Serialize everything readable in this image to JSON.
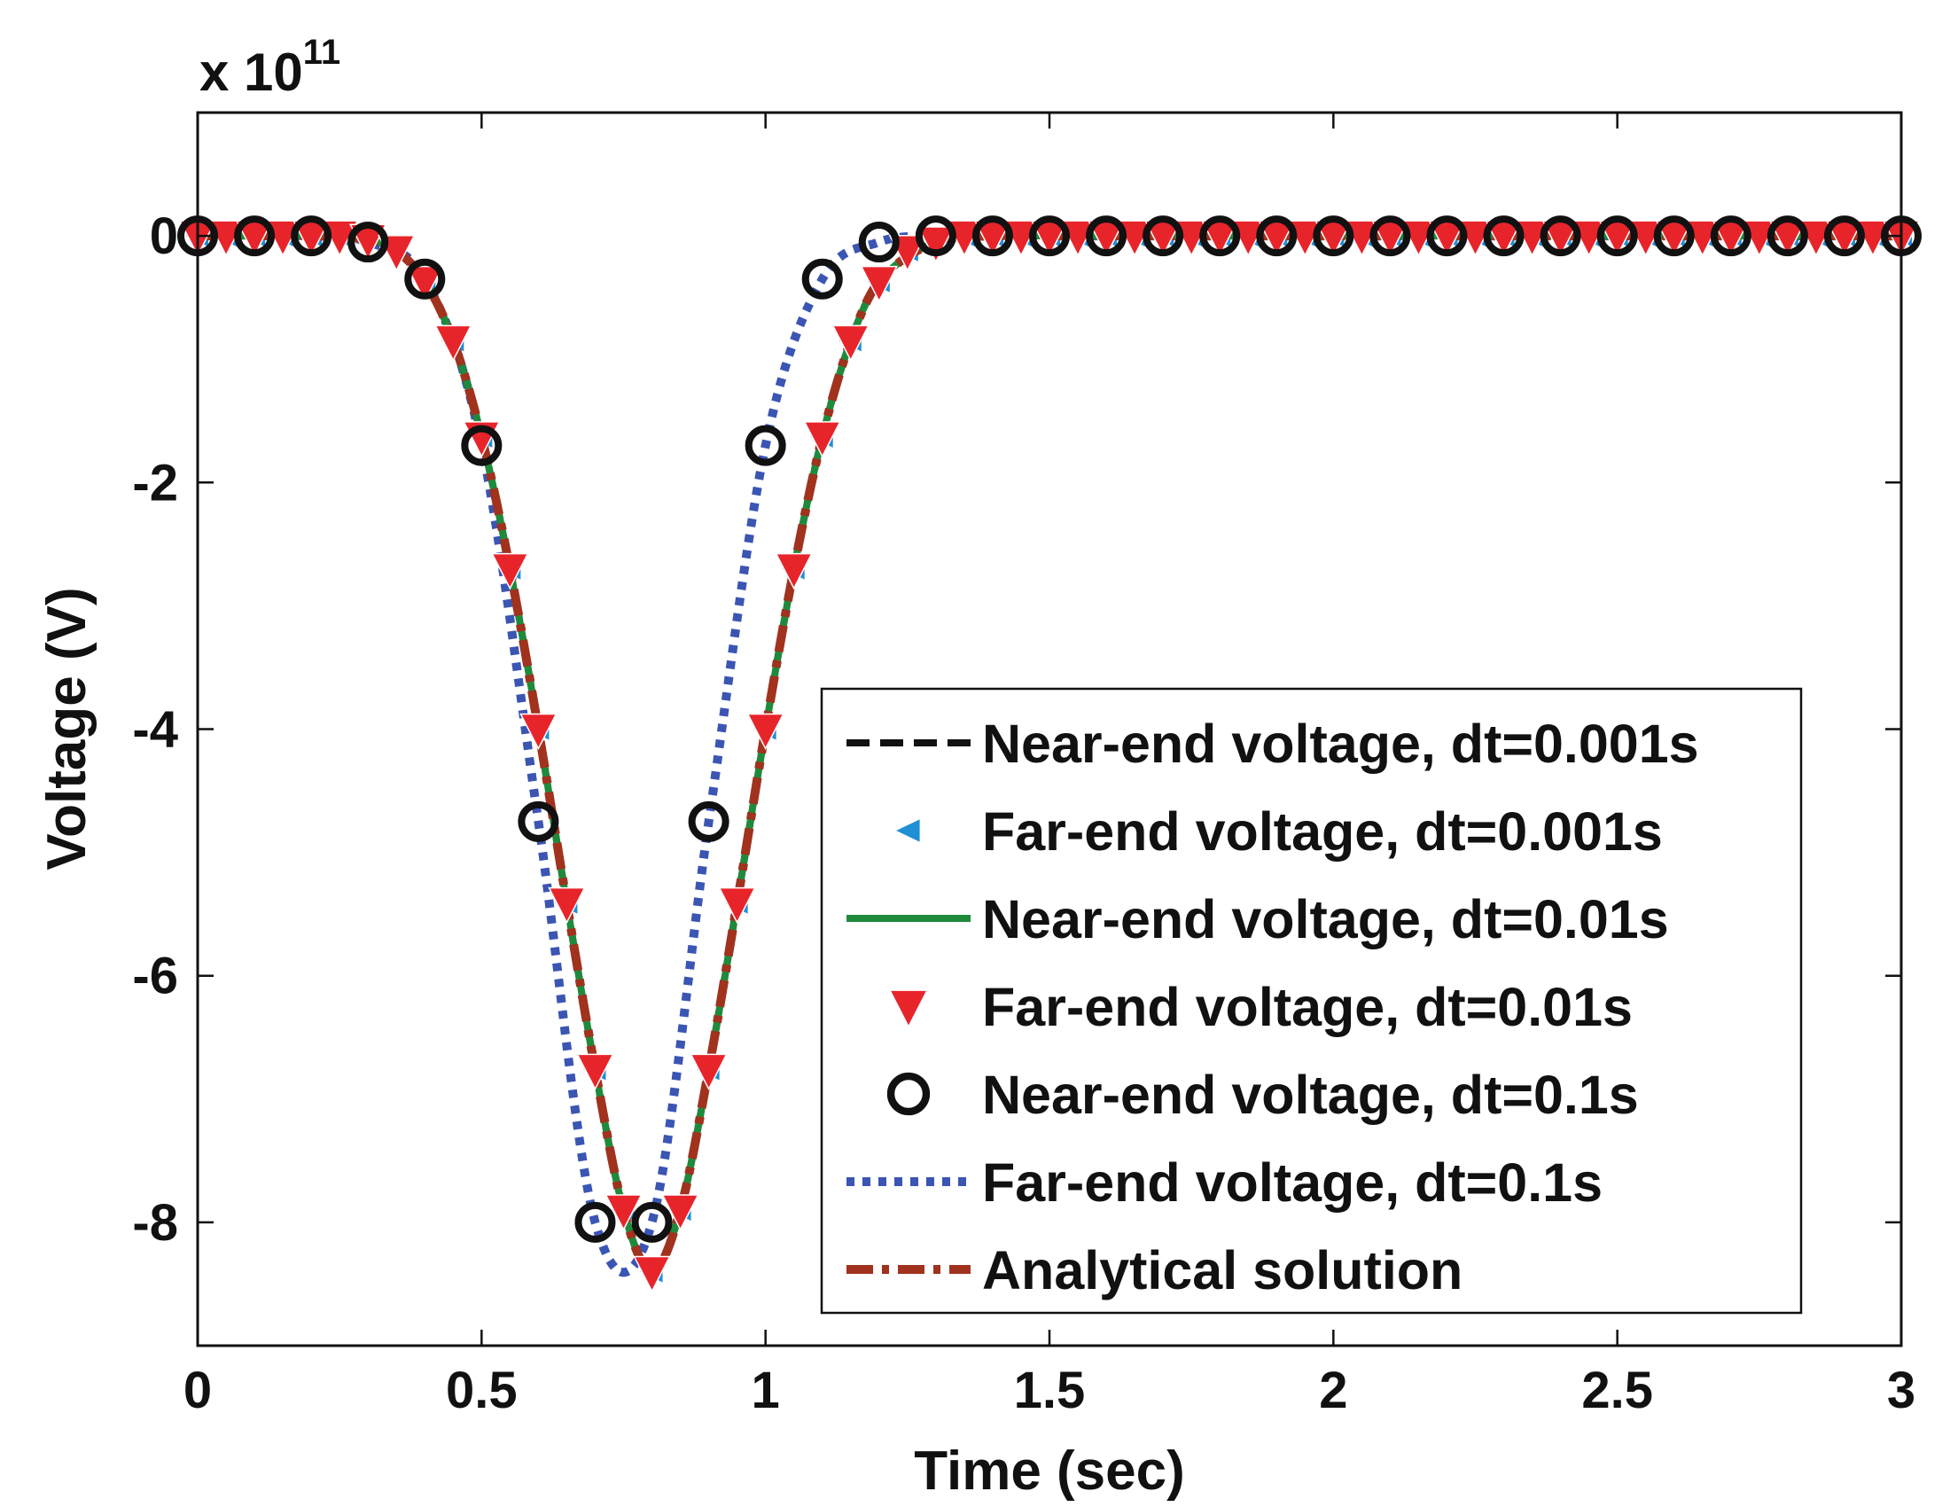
{
  "chart_data": {
    "type": "line",
    "xlabel": "Time (sec)",
    "ylabel": "Voltage (V)",
    "y_multiplier": {
      "base": "x 10",
      "exponent": "11"
    },
    "xlim": [
      0,
      3
    ],
    "ylim": [
      -9,
      1
    ],
    "x_ticks": [
      "0",
      "0.5",
      "1",
      "1.5",
      "2",
      "2.5",
      "3"
    ],
    "y_ticks": [
      "0",
      "-2",
      "-4",
      "-6",
      "-8"
    ],
    "x_tick_values": [
      0,
      0.5,
      1,
      1.5,
      2,
      2.5,
      3
    ],
    "y_tick_values": [
      0,
      -2,
      -4,
      -6,
      -8
    ],
    "grid": false,
    "legend_position": "lower-right",
    "series": [
      {
        "name": "Near-end voltage, dt=0.001s",
        "color": "#111111",
        "style": "dashed",
        "marker": "none",
        "x": [
          0,
          0.1,
          0.2,
          0.3,
          0.35,
          0.4,
          0.45,
          0.5,
          0.55,
          0.6,
          0.65,
          0.7,
          0.75,
          0.8,
          0.85,
          0.9,
          0.95,
          1.0,
          1.05,
          1.1,
          1.15,
          1.2,
          1.3,
          1.4,
          1.5,
          2.0,
          2.5,
          3.0
        ],
        "y": [
          0,
          0,
          0,
          -0.03,
          -0.12,
          -0.37,
          -0.85,
          -1.63,
          -2.7,
          -4.0,
          -5.41,
          -6.76,
          -7.9,
          -8.4,
          -7.9,
          -6.76,
          -5.41,
          -4.0,
          -2.7,
          -1.63,
          -0.85,
          -0.37,
          -0.05,
          0,
          0,
          0,
          0,
          0
        ]
      },
      {
        "name": "Far-end voltage, dt=0.001s",
        "color": "#1f8fd6",
        "style": "none",
        "marker": "triangle-left",
        "x": [
          0,
          0.05,
          0.1,
          0.15,
          0.2,
          0.25,
          0.3,
          0.35,
          0.4,
          0.45,
          0.5,
          0.55,
          0.6,
          0.65,
          0.7,
          0.75,
          0.8,
          0.85,
          0.9,
          0.95,
          1.0,
          1.05,
          1.1,
          1.15,
          1.2,
          1.25,
          1.3,
          1.35,
          1.4,
          1.45,
          1.5,
          1.55,
          1.6,
          1.65,
          1.7,
          1.75,
          1.8,
          1.85,
          1.9,
          1.95,
          2.0,
          2.05,
          2.1,
          2.15,
          2.2,
          2.25,
          2.3,
          2.35,
          2.4,
          2.45,
          2.5,
          2.55,
          2.6,
          2.65,
          2.7,
          2.75,
          2.8,
          2.85,
          2.9,
          2.95,
          3.0
        ],
        "y": [
          0,
          0,
          0,
          0,
          0,
          0,
          -0.03,
          -0.12,
          -0.37,
          -0.85,
          -1.63,
          -2.7,
          -4.0,
          -5.41,
          -6.76,
          -7.9,
          -8.4,
          -7.9,
          -6.76,
          -5.41,
          -4.0,
          -2.7,
          -1.63,
          -0.85,
          -0.37,
          -0.12,
          -0.05,
          0,
          0,
          0,
          0,
          0,
          0,
          0,
          0,
          0,
          0,
          0,
          0,
          0,
          0,
          0,
          0,
          0,
          0,
          0,
          0,
          0,
          0,
          0,
          0,
          0,
          0,
          0,
          0,
          0,
          0,
          0,
          0,
          0,
          0
        ]
      },
      {
        "name": "Near-end voltage, dt=0.01s",
        "color": "#1f8a3c",
        "style": "solid",
        "marker": "none",
        "x": [
          0,
          0.1,
          0.2,
          0.3,
          0.35,
          0.4,
          0.45,
          0.5,
          0.55,
          0.6,
          0.65,
          0.7,
          0.75,
          0.8,
          0.85,
          0.9,
          0.95,
          1.0,
          1.05,
          1.1,
          1.15,
          1.2,
          1.3,
          1.4,
          1.5,
          2.0,
          2.5,
          3.0
        ],
        "y": [
          0,
          0,
          0,
          -0.03,
          -0.12,
          -0.37,
          -0.85,
          -1.63,
          -2.7,
          -4.0,
          -5.41,
          -6.76,
          -7.9,
          -8.4,
          -7.9,
          -6.76,
          -5.41,
          -4.0,
          -2.7,
          -1.63,
          -0.85,
          -0.37,
          -0.05,
          0,
          0,
          0,
          0,
          0
        ]
      },
      {
        "name": "Far-end voltage, dt=0.01s",
        "color": "#e8242b",
        "style": "none",
        "marker": "triangle-down",
        "x": [
          0,
          0.05,
          0.1,
          0.15,
          0.2,
          0.25,
          0.3,
          0.35,
          0.4,
          0.45,
          0.5,
          0.55,
          0.6,
          0.65,
          0.7,
          0.75,
          0.8,
          0.85,
          0.9,
          0.95,
          1.0,
          1.05,
          1.1,
          1.15,
          1.2,
          1.25,
          1.3,
          1.35,
          1.4,
          1.45,
          1.5,
          1.55,
          1.6,
          1.65,
          1.7,
          1.75,
          1.8,
          1.85,
          1.9,
          1.95,
          2.0,
          2.05,
          2.1,
          2.15,
          2.2,
          2.25,
          2.3,
          2.35,
          2.4,
          2.45,
          2.5,
          2.55,
          2.6,
          2.65,
          2.7,
          2.75,
          2.8,
          2.85,
          2.9,
          2.95,
          3.0
        ],
        "y": [
          0,
          0,
          0,
          0,
          0,
          0,
          -0.03,
          -0.12,
          -0.37,
          -0.85,
          -1.63,
          -2.7,
          -4.0,
          -5.41,
          -6.76,
          -7.9,
          -8.4,
          -7.9,
          -6.76,
          -5.41,
          -4.0,
          -2.7,
          -1.63,
          -0.85,
          -0.37,
          -0.12,
          -0.05,
          0,
          0,
          0,
          0,
          0,
          0,
          0,
          0,
          0,
          0,
          0,
          0,
          0,
          0,
          0,
          0,
          0,
          0,
          0,
          0,
          0,
          0,
          0,
          0,
          0,
          0,
          0,
          0,
          0,
          0,
          0,
          0,
          0,
          0
        ]
      },
      {
        "name": "Near-end voltage, dt=0.1s",
        "color": "#111111",
        "style": "none",
        "marker": "circle",
        "x": [
          0,
          0.1,
          0.2,
          0.3,
          0.4,
          0.5,
          0.6,
          0.7,
          0.8,
          0.9,
          1.0,
          1.1,
          1.2,
          1.3,
          1.4,
          1.5,
          1.6,
          1.7,
          1.8,
          1.9,
          2.0,
          2.1,
          2.2,
          2.3,
          2.4,
          2.5,
          2.6,
          2.7,
          2.8,
          2.9,
          3.0
        ],
        "y": [
          0,
          0,
          0,
          -0.05,
          -0.35,
          -1.7,
          -4.75,
          -8.0,
          -8.0,
          -4.75,
          -1.7,
          -0.35,
          -0.05,
          0,
          0,
          0,
          0,
          0,
          0,
          0,
          0,
          0,
          0,
          0,
          0,
          0,
          0,
          0,
          0,
          0,
          0
        ]
      },
      {
        "name": "Far-end voltage, dt=0.1s",
        "color": "#3b55b3",
        "style": "dotted",
        "marker": "none",
        "x": [
          0,
          0.1,
          0.2,
          0.3,
          0.4,
          0.5,
          0.6,
          0.7,
          0.8,
          0.9,
          1.0,
          1.1,
          1.2,
          1.3,
          1.4,
          1.5,
          1.6,
          1.7,
          1.8,
          1.9,
          2.0,
          2.1,
          2.2,
          2.3,
          2.4,
          2.5,
          2.6,
          2.7,
          2.8,
          2.9,
          3.0
        ],
        "y": [
          0,
          0,
          0,
          -0.05,
          -0.35,
          -1.7,
          -4.75,
          -8.0,
          -8.0,
          -4.75,
          -1.7,
          -0.35,
          -0.05,
          0,
          0,
          0,
          0,
          0,
          0,
          0,
          0,
          0,
          0,
          0,
          0,
          0,
          0,
          0,
          0,
          0,
          0
        ]
      },
      {
        "name": "Analytical solution",
        "color": "#a0321e",
        "style": "dashdot",
        "marker": "none",
        "x": [
          0,
          0.1,
          0.2,
          0.3,
          0.35,
          0.4,
          0.45,
          0.5,
          0.55,
          0.6,
          0.65,
          0.7,
          0.75,
          0.8,
          0.85,
          0.9,
          0.95,
          1.0,
          1.05,
          1.1,
          1.15,
          1.2,
          1.3,
          1.4,
          1.5,
          2.0,
          2.5,
          3.0
        ],
        "y": [
          0,
          0,
          0,
          -0.03,
          -0.12,
          -0.37,
          -0.85,
          -1.63,
          -2.7,
          -4.0,
          -5.41,
          -6.76,
          -7.9,
          -8.4,
          -7.9,
          -6.76,
          -5.41,
          -4.0,
          -2.7,
          -1.63,
          -0.85,
          -0.37,
          -0.05,
          0,
          0,
          0,
          0,
          0
        ]
      }
    ]
  }
}
